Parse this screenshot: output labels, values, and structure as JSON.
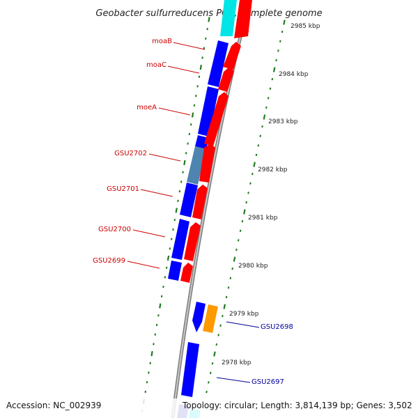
{
  "title": "Geobacter sulfurreducens PCA, complete genome",
  "footer": {
    "accession": "Accession: NC_002939",
    "topology": "Topology: circular; Length: 3,814,139 bp; Genes: 3,502"
  },
  "colors": {
    "forward_gene": "#ff0000",
    "reverse_gene": "#0000ff",
    "orange_gene": "#ff9900",
    "cyan_gene": "#00e5e5",
    "highlight_gene": "#4f83b0",
    "tick": "#1f7a1f",
    "backbone": "#9a9a9a",
    "red_label": "#cc0000",
    "blue_label": "#000099"
  },
  "scale_labels": [
    "2985 kbp",
    "2984 kbp",
    "2983 kbp",
    "2982 kbp",
    "2981 kbp",
    "2980 kbp",
    "2979 kbp",
    "2978 kbp"
  ],
  "gene_labels": [
    {
      "text": "moaB",
      "color": "red"
    },
    {
      "text": "moaC",
      "color": "red"
    },
    {
      "text": "moeA",
      "color": "red"
    },
    {
      "text": "GSU2702",
      "color": "red"
    },
    {
      "text": "GSU2701",
      "color": "red"
    },
    {
      "text": "GSU2700",
      "color": "red"
    },
    {
      "text": "GSU2699",
      "color": "red"
    },
    {
      "text": "GSU2698",
      "color": "blue"
    },
    {
      "text": "GSU2697",
      "color": "blue"
    }
  ]
}
